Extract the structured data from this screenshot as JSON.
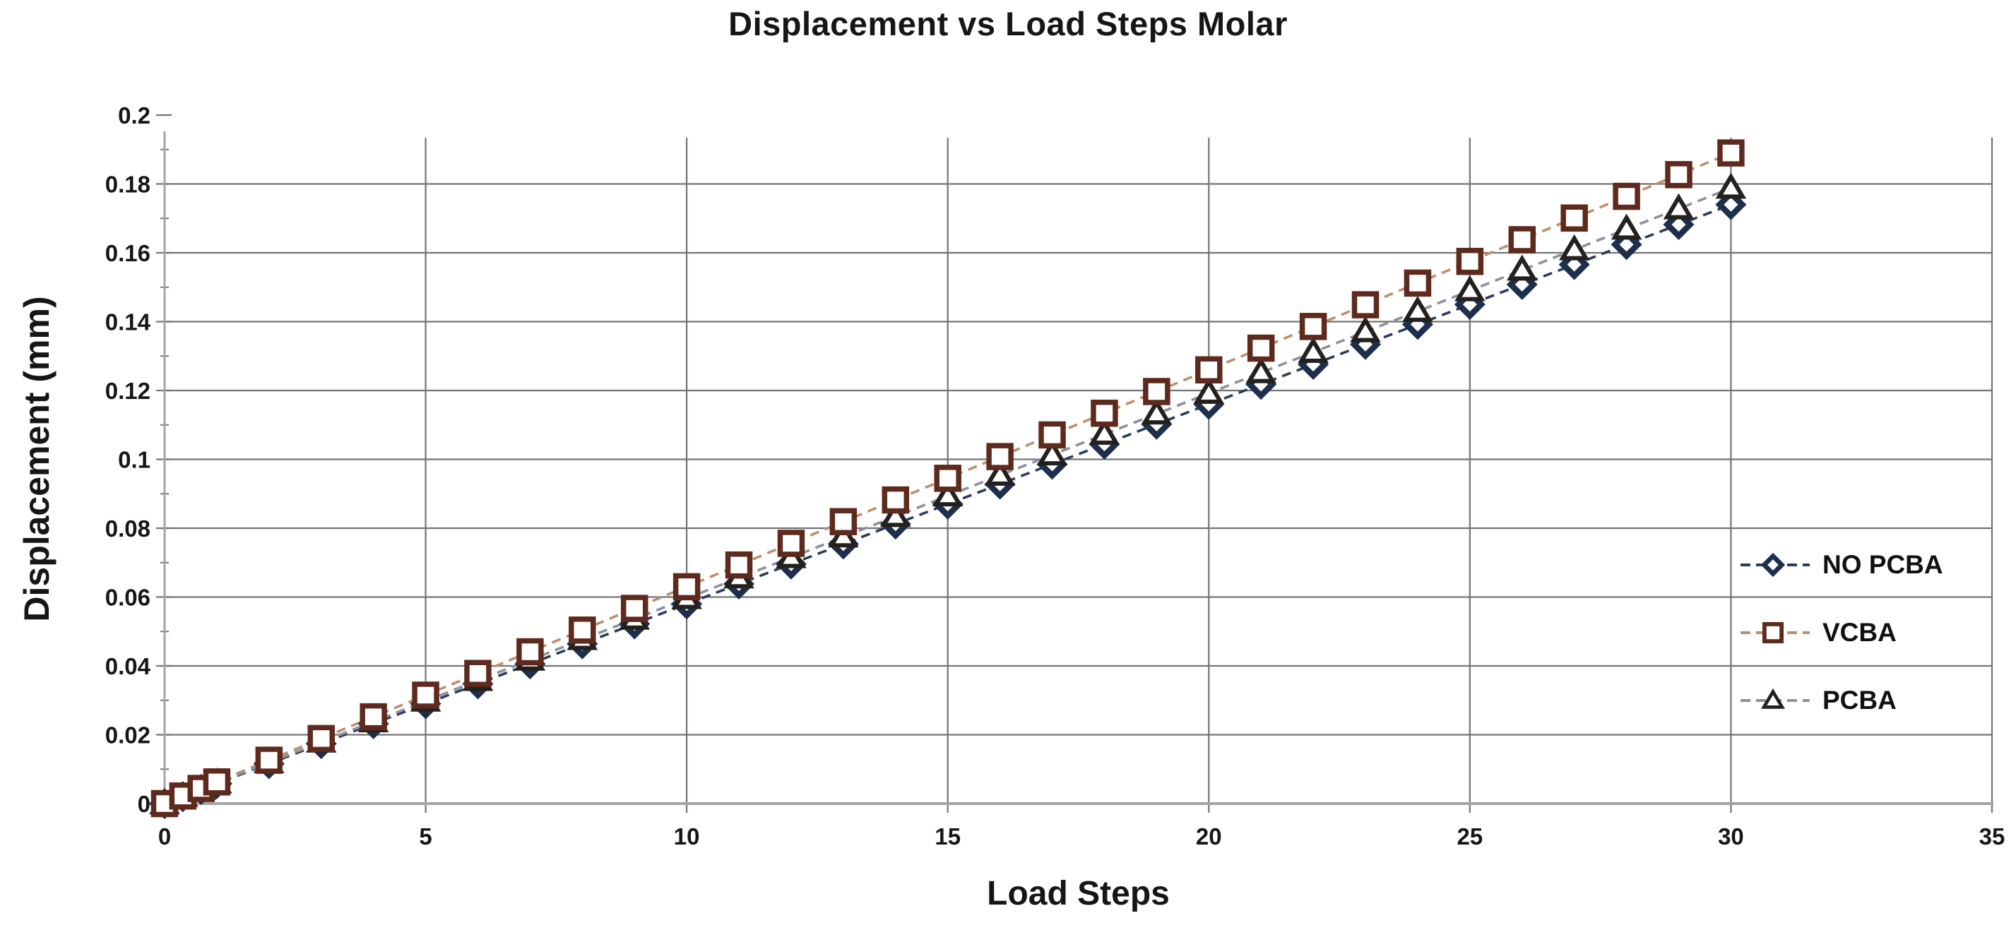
{
  "page": {
    "background": "#ffffff"
  },
  "chart_data": {
    "type": "line",
    "title": "Displacement vs Load Steps Molar",
    "xlabel": "Load Steps",
    "ylabel": "Displacement (mm)",
    "xlim": [
      0,
      35
    ],
    "ylim": [
      0,
      0.2
    ],
    "grid": {
      "horizontal": true,
      "vertical": true,
      "top_gridline_omitted": true
    },
    "legend_position": "right",
    "axis_color": "#a4a4a4",
    "gridline_color": "#747474",
    "tick_text_color": "#161616",
    "x_ticks": {
      "values": [
        0,
        5,
        10,
        15,
        20,
        25,
        30,
        35
      ],
      "labels": [
        "0",
        "5",
        "10",
        "15",
        "20",
        "25",
        "30",
        "35"
      ]
    },
    "y_ticks": {
      "values": [
        0,
        0.02,
        0.04,
        0.06,
        0.08,
        0.1,
        0.12,
        0.14,
        0.16,
        0.18,
        0.2
      ],
      "labels": [
        "0",
        "0.02",
        "0.04",
        "0.06",
        "0.08",
        "0.1",
        "0.12",
        "0.14",
        "0.16",
        "0.18",
        "0.2"
      ]
    },
    "y_minor_tick_step": 0.01,
    "x": [
      0,
      0.35,
      0.7,
      1,
      2,
      3,
      4,
      5,
      6,
      7,
      8,
      9,
      10,
      11,
      12,
      13,
      14,
      15,
      16,
      17,
      18,
      19,
      20,
      21,
      22,
      23,
      24,
      25,
      26,
      27,
      28,
      29,
      30
    ],
    "series": [
      {
        "name": "NO PCBA",
        "marker": "diamond",
        "marker_color": "#1e2f4d",
        "line_color": "#2b3c5c",
        "line_style": "dashed",
        "values": [
          0,
          0.002,
          0.0041,
          0.0058,
          0.0116,
          0.0174,
          0.0232,
          0.029,
          0.0348,
          0.0406,
          0.0464,
          0.0522,
          0.058,
          0.0638,
          0.0696,
          0.0754,
          0.0812,
          0.087,
          0.0928,
          0.0986,
          0.1044,
          0.1102,
          0.116,
          0.1218,
          0.1276,
          0.1334,
          0.1392,
          0.145,
          0.1508,
          0.1566,
          0.1624,
          0.1682,
          0.174
        ]
      },
      {
        "name": "VCBA",
        "marker": "square",
        "marker_color": "#5e2a1e",
        "line_color": "#bd8f6e",
        "line_style": "dashed",
        "values": [
          0,
          0.0022,
          0.0044,
          0.0063,
          0.0126,
          0.0189,
          0.0252,
          0.0315,
          0.0378,
          0.0441,
          0.0504,
          0.0567,
          0.063,
          0.0693,
          0.0756,
          0.0819,
          0.0882,
          0.0945,
          0.1008,
          0.1071,
          0.1134,
          0.1197,
          0.126,
          0.1323,
          0.1386,
          0.1449,
          0.1512,
          0.1575,
          0.1638,
          0.1701,
          0.1764,
          0.1827,
          0.189
        ]
      },
      {
        "name": "PCBA",
        "marker": "triangle",
        "marker_color": "#23201d",
        "line_color": "#8b919e",
        "line_style": "dashed",
        "values": [
          0,
          0.0021,
          0.0042,
          0.006,
          0.0119,
          0.0179,
          0.0238,
          0.0298,
          0.0358,
          0.0417,
          0.0477,
          0.0536,
          0.0596,
          0.0656,
          0.0715,
          0.0775,
          0.0834,
          0.0894,
          0.0954,
          0.1013,
          0.1073,
          0.1132,
          0.1192,
          0.1252,
          0.1311,
          0.1371,
          0.143,
          0.149,
          0.155,
          0.1609,
          0.1669,
          0.1728,
          0.1788
        ]
      }
    ]
  }
}
